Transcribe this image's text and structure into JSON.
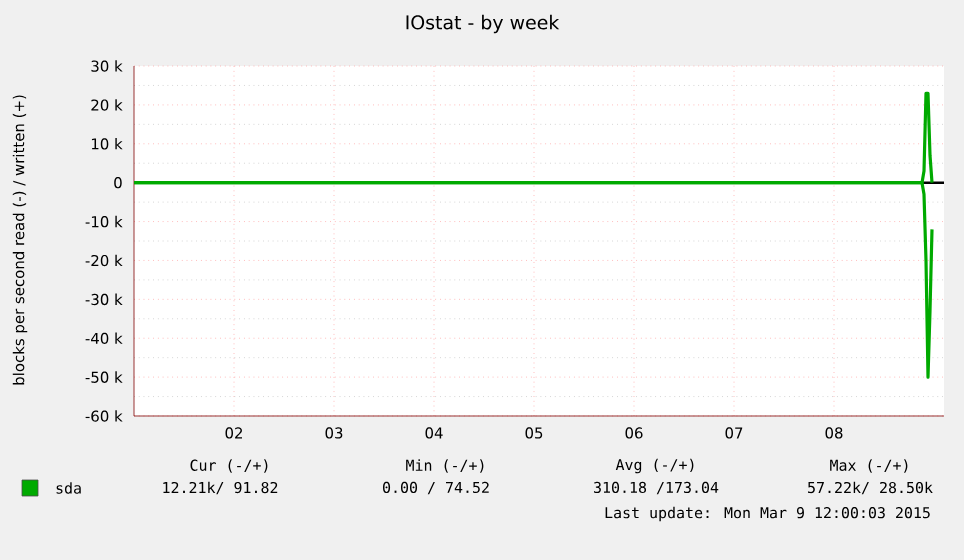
{
  "chart_data": {
    "type": "line",
    "title": "IOstat - by week",
    "ylabel": "blocks per second read (-) / written (+)",
    "xlim": [
      1.5,
      9.6
    ],
    "xticks": [
      {
        "value": 2.5,
        "label": "02"
      },
      {
        "value": 3.5,
        "label": "03"
      },
      {
        "value": 4.5,
        "label": "04"
      },
      {
        "value": 5.5,
        "label": "05"
      },
      {
        "value": 6.5,
        "label": "06"
      },
      {
        "value": 7.5,
        "label": "07"
      },
      {
        "value": 8.5,
        "label": "08"
      }
    ],
    "ylim": [
      -60000,
      30000
    ],
    "yticks": [
      {
        "value": -60000,
        "label": "-60 k"
      },
      {
        "value": -50000,
        "label": "-50 k"
      },
      {
        "value": -40000,
        "label": "-40 k"
      },
      {
        "value": -30000,
        "label": "-30 k"
      },
      {
        "value": -20000,
        "label": "-20 k"
      },
      {
        "value": -10000,
        "label": "-10 k"
      },
      {
        "value": 0,
        "label": "0"
      },
      {
        "value": 10000,
        "label": "10 k"
      },
      {
        "value": 20000,
        "label": "20 k"
      },
      {
        "value": 30000,
        "label": "30 k"
      }
    ],
    "grid": true,
    "legend": "bottom",
    "ref_lines": [
      {
        "axis": "y",
        "value": 0,
        "color": "#000000"
      }
    ],
    "series": [
      {
        "name": "sda",
        "color": "#00aa00",
        "x": [
          1.5,
          9.38,
          9.4,
          9.42,
          9.44,
          9.46,
          9.48
        ],
        "values": [
          0,
          0,
          -3000,
          -20000,
          -50000,
          -33000,
          -12000
        ]
      },
      {
        "color": "#00aa00",
        "x": [
          1.5,
          9.38,
          9.4,
          9.42,
          9.44,
          9.46,
          9.48
        ],
        "values": [
          0,
          0,
          3000,
          23000,
          23000,
          7000,
          0
        ]
      }
    ],
    "annotations": [
      "Cur (-/+)",
      "Min (-/+)",
      "Avg (-/+)",
      "Max (-/+)",
      "12.21k/ 91.82",
      "0.00 / 74.52",
      "310.18 /173.04",
      "57.22k/ 28.50k",
      "Last update: Mon Mar  9 12:00:03 2015"
    ]
  }
}
